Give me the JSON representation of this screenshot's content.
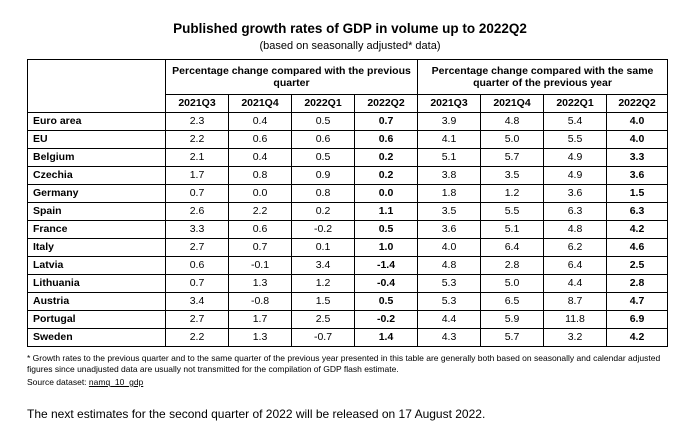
{
  "title": "Published growth rates of GDP in volume up to 2022Q2",
  "subtitle": "(based on seasonally adjusted* data)",
  "table": {
    "group_prev_quarter": "Percentage change compared with the previous quarter",
    "group_prev_year": "Percentage change compared with the same quarter of the previous year",
    "quarters": [
      "2021Q3",
      "2021Q4",
      "2022Q1",
      "2022Q2",
      "2021Q3",
      "2021Q4",
      "2022Q1",
      "2022Q2"
    ],
    "rows": [
      {
        "country": "Euro area",
        "values": [
          "2.3",
          "0.4",
          "0.5",
          "0.7",
          "3.9",
          "4.8",
          "5.4",
          "4.0"
        ]
      },
      {
        "country": "EU",
        "values": [
          "2.2",
          "0.6",
          "0.6",
          "0.6",
          "4.1",
          "5.0",
          "5.5",
          "4.0"
        ]
      },
      {
        "country": "Belgium",
        "values": [
          "2.1",
          "0.4",
          "0.5",
          "0.2",
          "5.1",
          "5.7",
          "4.9",
          "3.3"
        ]
      },
      {
        "country": "Czechia",
        "values": [
          "1.7",
          "0.8",
          "0.9",
          "0.2",
          "3.8",
          "3.5",
          "4.9",
          "3.6"
        ]
      },
      {
        "country": "Germany",
        "values": [
          "0.7",
          "0.0",
          "0.8",
          "0.0",
          "1.8",
          "1.2",
          "3.6",
          "1.5"
        ]
      },
      {
        "country": "Spain",
        "values": [
          "2.6",
          "2.2",
          "0.2",
          "1.1",
          "3.5",
          "5.5",
          "6.3",
          "6.3"
        ]
      },
      {
        "country": "France",
        "values": [
          "3.3",
          "0.6",
          "-0.2",
          "0.5",
          "3.6",
          "5.1",
          "4.8",
          "4.2"
        ]
      },
      {
        "country": "Italy",
        "values": [
          "2.7",
          "0.7",
          "0.1",
          "1.0",
          "4.0",
          "6.4",
          "6.2",
          "4.6"
        ]
      },
      {
        "country": "Latvia",
        "values": [
          "0.6",
          "-0.1",
          "3.4",
          "-1.4",
          "4.8",
          "2.8",
          "6.4",
          "2.5"
        ]
      },
      {
        "country": "Lithuania",
        "values": [
          "0.7",
          "1.3",
          "1.2",
          "-0.4",
          "5.3",
          "5.0",
          "4.4",
          "2.8"
        ]
      },
      {
        "country": "Austria",
        "values": [
          "3.4",
          "-0.8",
          "1.5",
          "0.5",
          "5.3",
          "6.5",
          "8.7",
          "4.7"
        ]
      },
      {
        "country": "Portugal",
        "values": [
          "2.7",
          "1.7",
          "2.5",
          "-0.2",
          "4.4",
          "5.9",
          "11.8",
          "6.9"
        ]
      },
      {
        "country": "Sweden",
        "values": [
          "2.2",
          "1.3",
          "-0.7",
          "1.4",
          "4.3",
          "5.7",
          "3.2",
          "4.2"
        ]
      }
    ]
  },
  "footnote": "* Growth rates to the previous quarter and to the same quarter of the previous year presented in this table are generally both based on seasonally and calendar adjusted figures since unadjusted data are usually not transmitted for the compilation of GDP flash estimate.",
  "source_label": "Source dataset:",
  "source_link": "namq_10_gdp",
  "release_note": "The next estimates for the second quarter of 2022 will be released on 17 August 2022."
}
